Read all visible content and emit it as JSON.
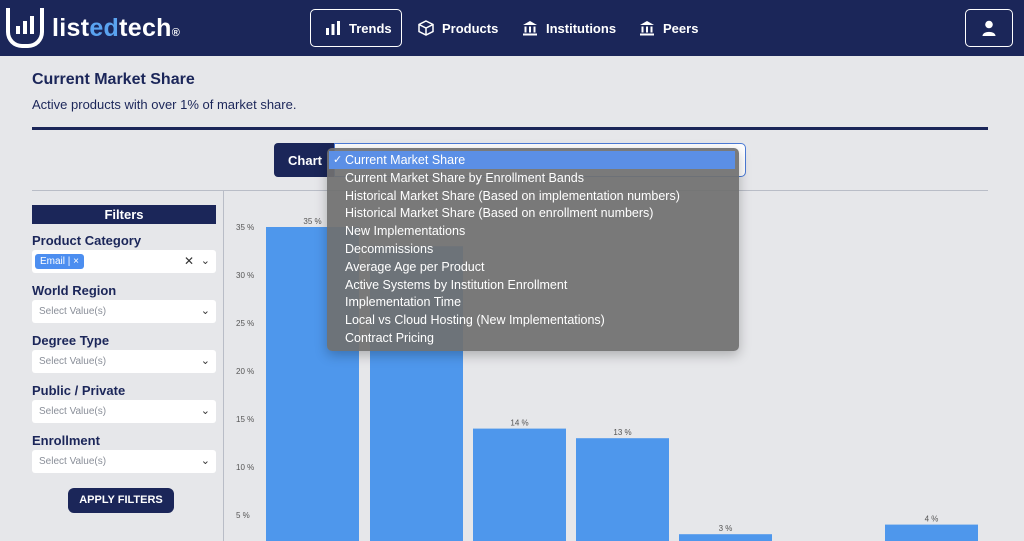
{
  "brand": {
    "part1": "list",
    "part2": "ed",
    "part3": "tech",
    "reg": "®"
  },
  "nav": {
    "trends": "Trends",
    "products": "Products",
    "institutions": "Institutions",
    "peers": "Peers"
  },
  "page": {
    "title": "Current Market Share",
    "subtitle": "Active products with over 1% of market share."
  },
  "chart_selector": {
    "label": "Chart",
    "options": [
      "Current Market Share",
      "Current Market Share by Enrollment Bands",
      "Historical Market Share (Based on implementation numbers)",
      "Historical Market Share (Based on enrollment numbers)",
      "New Implementations",
      "Decommissions",
      "Average Age per Product",
      "Active Systems by Institution Enrollment",
      "Implementation Time",
      "Local vs Cloud Hosting (New Implementations)",
      "Contract Pricing"
    ],
    "selected_index": 0
  },
  "filters": {
    "heading": "Filters",
    "product_category": {
      "label": "Product Category",
      "tag": "Email | ×"
    },
    "world_region": {
      "label": "World Region",
      "placeholder": "Select Value(s)"
    },
    "degree_type": {
      "label": "Degree Type",
      "placeholder": "Select Value(s)"
    },
    "public_private": {
      "label": "Public / Private",
      "placeholder": "Select Value(s)"
    },
    "enrollment": {
      "label": "Enrollment",
      "placeholder": "Select Value(s)"
    },
    "apply": "APPLY FILTERS"
  },
  "colors": {
    "navy": "#1b2659",
    "bar": "#4e97ec",
    "accent": "#5aa3f0"
  },
  "chart_data": {
    "type": "bar",
    "title": "",
    "y_ticks": [
      "5 %",
      "10 %",
      "15 %",
      "20 %",
      "25 %",
      "30 %",
      "35 %"
    ],
    "ylim": [
      0,
      37
    ],
    "values": [
      35,
      33,
      14,
      13,
      3,
      4
    ],
    "labels": [
      "35 %",
      "",
      "14 %",
      "13 %",
      "3 %",
      "4 %"
    ]
  }
}
